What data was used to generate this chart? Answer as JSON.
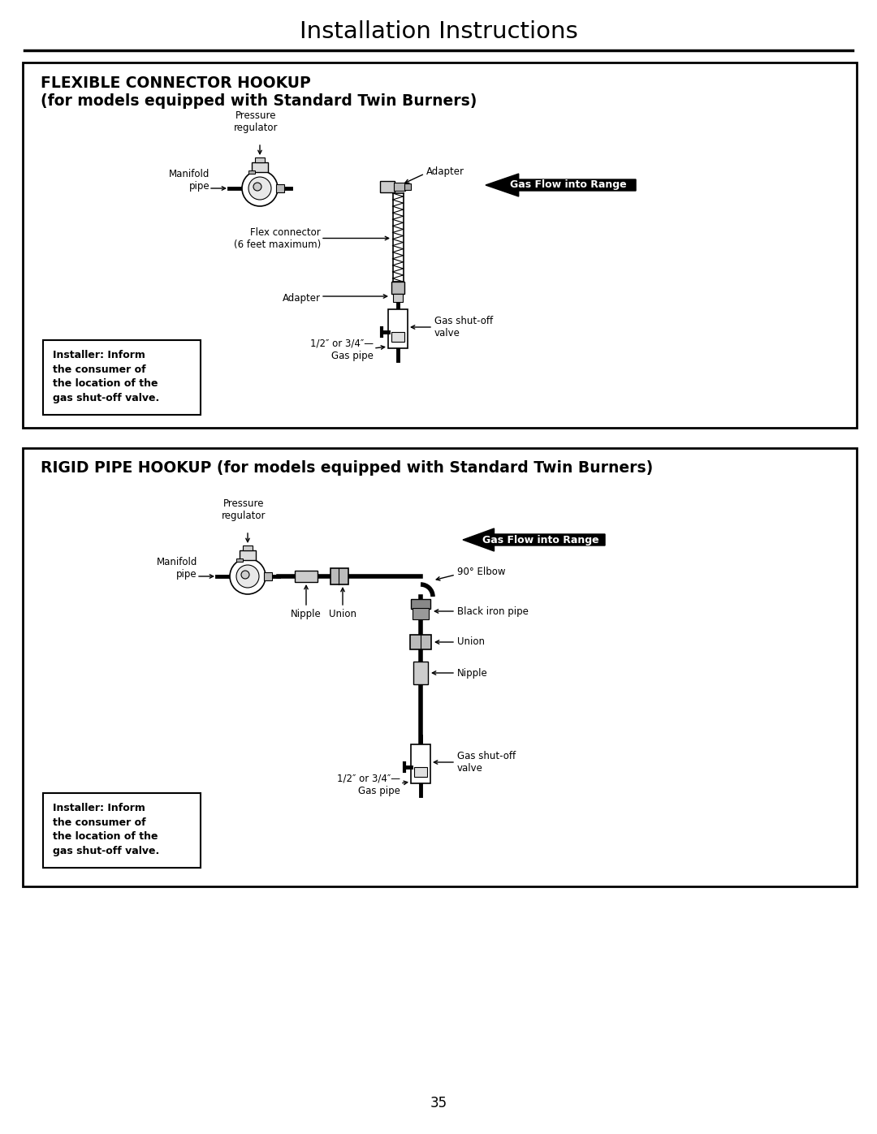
{
  "page_title": "Installation Instructions",
  "page_number": "35",
  "bg_color": "#ffffff",
  "box1_title_line1": "FLEXIBLE CONNECTOR HOOKUP",
  "box1_title_line2": "(for models equipped with Standard Twin Burners)",
  "box2_title": "RIGID PIPE HOOKUP (for models equipped with Standard Twin Burners)",
  "gas_flow_label": "Gas Flow into Range",
  "installer_text": "Installer: Inform\nthe consumer of\nthe location of the\ngas shut-off valve.",
  "flex_labels": {
    "pressure_regulator": "Pressure\nregulator",
    "adapter_top": "Adapter",
    "manifold_pipe": "Manifold\npipe",
    "flex_connector": "Flex connector\n(6 feet maximum)",
    "adapter_bottom": "Adapter",
    "gas_shutoff": "Gas shut-off\nvalve",
    "gas_pipe": "1/2″ or 3/4″—\nGas pipe"
  },
  "rigid_labels": {
    "pressure_regulator": "Pressure\nregulator",
    "manifold_pipe": "Manifold\npipe",
    "nipple": "Nipple",
    "union": "Union",
    "elbow_90": "90° Elbow",
    "black_iron_pipe": "Black iron pipe",
    "union2": "Union",
    "nipple2": "Nipple",
    "gas_shutoff": "Gas shut-off\nvalve",
    "gas_pipe": "1/2″ or 3/4″—\nGas pipe"
  }
}
